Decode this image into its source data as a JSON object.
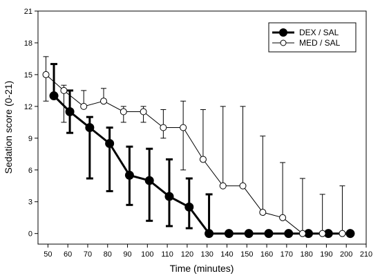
{
  "chart_data": {
    "type": "line",
    "xlabel": "Time (minutes)",
    "ylabel": "Sedation score (0-21)",
    "xlim": [
      45,
      210
    ],
    "ylim": [
      -1,
      21
    ],
    "xticks": [
      50,
      60,
      70,
      80,
      90,
      100,
      110,
      120,
      130,
      140,
      150,
      160,
      170,
      180,
      190,
      200,
      210
    ],
    "yticks": [
      0,
      3,
      6,
      9,
      12,
      15,
      18,
      21
    ],
    "legend_position": "top-right",
    "grid": false,
    "series": [
      {
        "name": "DEX / SAL",
        "marker": "filled-circle",
        "color": "#000000",
        "x": [
          53,
          61,
          71,
          81,
          91,
          101,
          111,
          121,
          131,
          141,
          151,
          161,
          171,
          181,
          191,
          202
        ],
        "y": [
          13,
          11.5,
          10,
          8.5,
          5.5,
          5,
          3.5,
          2.5,
          0,
          0,
          0,
          0,
          0,
          0,
          0,
          0
        ],
        "error_upper": [
          16,
          13.5,
          11,
          10,
          8.2,
          8,
          7,
          5.2,
          3.7,
          0,
          0,
          0,
          0,
          0,
          0,
          0
        ],
        "error_lower": [
          13,
          9.5,
          5.2,
          4,
          2.7,
          1.2,
          0.7,
          0.5,
          0,
          0,
          0,
          0,
          0,
          0,
          0,
          0
        ]
      },
      {
        "name": "MED / SAL",
        "marker": "open-circle",
        "color": "#000000",
        "x": [
          49,
          58,
          68,
          78,
          88,
          98,
          108,
          118,
          128,
          138,
          148,
          158,
          168,
          178,
          188,
          198
        ],
        "y": [
          15,
          13.5,
          12,
          12.5,
          11.5,
          11.5,
          10,
          10,
          7,
          4.5,
          4.5,
          2,
          1.5,
          0,
          0,
          0
        ],
        "error_upper": [
          16.7,
          14,
          13.5,
          13.7,
          12,
          12,
          11.7,
          12.5,
          11.7,
          12,
          12,
          9.2,
          6.7,
          5.2,
          3.7,
          4.5
        ],
        "error_lower": [
          12.5,
          10.5,
          12,
          12.5,
          10.5,
          10.5,
          9,
          6,
          7,
          4.5,
          4.5,
          2,
          1.5,
          0,
          0,
          0
        ]
      }
    ]
  }
}
